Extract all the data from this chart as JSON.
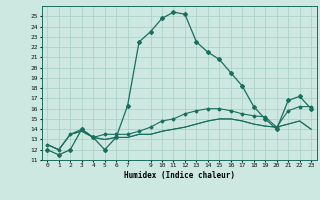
{
  "title": "",
  "xlabel": "Humidex (Indice chaleur)",
  "bg_color": "#cce8e0",
  "line_color": "#1a6e5e",
  "xlim": [
    -0.5,
    23.5
  ],
  "ylim": [
    11,
    26
  ],
  "xtick_vals": [
    0,
    1,
    2,
    3,
    4,
    5,
    6,
    7,
    9,
    10,
    11,
    12,
    13,
    14,
    15,
    16,
    17,
    18,
    19,
    20,
    21,
    22,
    23
  ],
  "ytick_vals": [
    11,
    12,
    13,
    14,
    15,
    16,
    17,
    18,
    19,
    20,
    21,
    22,
    23,
    24,
    25
  ],
  "series_main": [
    12.0,
    11.5,
    12.0,
    14.0,
    13.2,
    12.0,
    13.2,
    16.3,
    22.5,
    23.5,
    24.8,
    25.4,
    25.2,
    22.5,
    21.5,
    20.8,
    19.5,
    18.2,
    16.2,
    15.0,
    14.0,
    16.8,
    17.2,
    16.0
  ],
  "series_line2": [
    12.5,
    12.0,
    13.5,
    14.0,
    13.2,
    13.5,
    13.5,
    13.5,
    13.8,
    14.2,
    14.8,
    15.0,
    15.5,
    15.8,
    16.0,
    16.0,
    15.8,
    15.5,
    15.3,
    15.2,
    14.2,
    15.8,
    16.2,
    16.2
  ],
  "series_line3": [
    12.5,
    12.0,
    13.5,
    13.8,
    13.2,
    13.0,
    13.2,
    13.2,
    13.5,
    13.5,
    13.8,
    14.0,
    14.2,
    14.5,
    14.8,
    15.0,
    15.0,
    14.8,
    14.5,
    14.3,
    14.2,
    14.5,
    14.8,
    14.0
  ],
  "series_line4": [
    12.5,
    12.0,
    13.5,
    13.8,
    13.2,
    13.0,
    13.2,
    13.2,
    13.5,
    13.5,
    13.8,
    14.0,
    14.2,
    14.5,
    14.8,
    15.0,
    15.0,
    14.8,
    14.5,
    14.3,
    14.2,
    14.5,
    14.8,
    14.0
  ]
}
